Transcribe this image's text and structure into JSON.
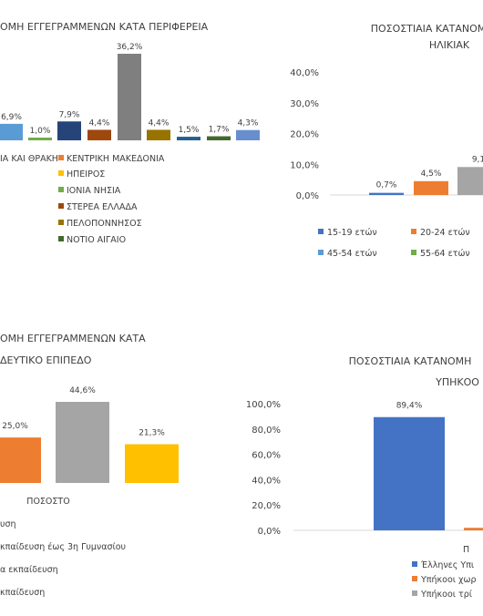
{
  "chart_data": [
    {
      "type": "bar",
      "title": "ΟΜΗ ΕΓΓΕΓΡΑΜΜΕΝΩΝ ΚΑΤΑ ΠΕΡΙΦΕΡΕΙΑ",
      "value_labels": [
        "6,9%",
        "1,0%",
        "7,9%",
        "4,4%",
        "36,2%",
        "4,4%",
        "1,5%",
        "1,7%",
        "4,3%"
      ],
      "values": [
        6.9,
        1.0,
        7.9,
        4.4,
        36.2,
        4.4,
        1.5,
        1.7,
        4.3
      ],
      "colors": [
        "#5b9bd5",
        "#70ad47",
        "#264478",
        "#9e480e",
        "#7f7f7f",
        "#997300",
        "#255e91",
        "#43682b",
        "#698ed0"
      ],
      "legend": [
        {
          "name": "ΙΑ ΚΑΙ ΘΡΑΚΗ",
          "color": null
        },
        {
          "name": "ΚΕΝΤΡΙΚΗ ΜΑΚΕΔΟΝΙΑ",
          "color": "#ed7d31"
        },
        {
          "name": "ΗΠΕΙΡΟΣ",
          "color": "#ffc000"
        },
        {
          "name": "ΙΟΝΙΑ ΝΗΣΙΑ",
          "color": "#70ad47"
        },
        {
          "name": "ΣΤΕΡΕΑ ΕΛΛΑΔΑ",
          "color": "#9e480e"
        },
        {
          "name": "ΠΕΛΟΠΟΝΝΗΣΟΣ",
          "color": "#997300"
        },
        {
          "name": "ΝΟΤΙΟ ΑΙΓΑΙΟ",
          "color": "#43682b"
        }
      ]
    },
    {
      "type": "bar",
      "title_lines": [
        "ΠΟΣΟΣΤΙΑΙΑ ΚΑΤΑΝΟΜ",
        "ΗΛΙΚΙΑΚ"
      ],
      "y_ticks": [
        "40,0%",
        "30,0%",
        "20,0%",
        "10,0%",
        "0,0%"
      ],
      "ylim": [
        0,
        40
      ],
      "value_labels": [
        "0,7%",
        "4,5%",
        "9,1"
      ],
      "values": [
        0.7,
        4.5,
        9.1
      ],
      "colors": [
        "#4472c4",
        "#ed7d31",
        "#a5a5a5"
      ],
      "legend": [
        {
          "name": "15-19 ετών",
          "color": "#4472c4"
        },
        {
          "name": "20-24 ετών",
          "color": "#ed7d31"
        },
        {
          "name": "45-54 ετών",
          "color": "#5b9bd5"
        },
        {
          "name": "55-64 ετών",
          "color": "#70ad47"
        }
      ]
    },
    {
      "type": "bar",
      "title_lines": [
        "ΟΜΗ ΕΓΓΕΓΡΑΜΜΕΝΩΝ ΚΑΤΑ",
        "ΔΕΥΤΙΚΟ ΕΠΙΠΕΔΟ"
      ],
      "value_labels": [
        "25,0%",
        "44,6%",
        "21,3%"
      ],
      "values": [
        25.0,
        44.6,
        21.3
      ],
      "colors": [
        "#ed7d31",
        "#a5a5a5",
        "#ffc000"
      ],
      "xlabel": "ΠΟΣΟΣΤΟ",
      "legend": [
        {
          "name": "υση",
          "color": null
        },
        {
          "name": "κπαίδευση έως 3η Γυμνασίου",
          "color": null
        },
        {
          "name": "α εκπαίδευση",
          "color": null
        },
        {
          "name": "κπαίδευση",
          "color": null
        }
      ]
    },
    {
      "type": "bar",
      "title_lines": [
        "ΠΟΣΟΣΤΙΑΙΑ ΚΑΤΑΝΟΜΗ",
        "ΥΠΗΚΟΟ"
      ],
      "y_ticks": [
        "100,0%",
        "80,0%",
        "60,0%",
        "40,0%",
        "20,0%",
        "0,0%"
      ],
      "ylim": [
        0,
        100
      ],
      "value_labels": [
        "89,4%"
      ],
      "values": [
        89.4,
        2.0
      ],
      "colors": [
        "#4472c4",
        "#ed7d31"
      ],
      "xlabel": "Π",
      "legend": [
        {
          "name": "Έλληνες Υπι",
          "color": "#4472c4"
        },
        {
          "name": "Υπήκοοι χωρ",
          "color": "#ed7d31"
        },
        {
          "name": "Υπήκοοι τρί",
          "color": "#a5a5a5"
        }
      ]
    }
  ]
}
